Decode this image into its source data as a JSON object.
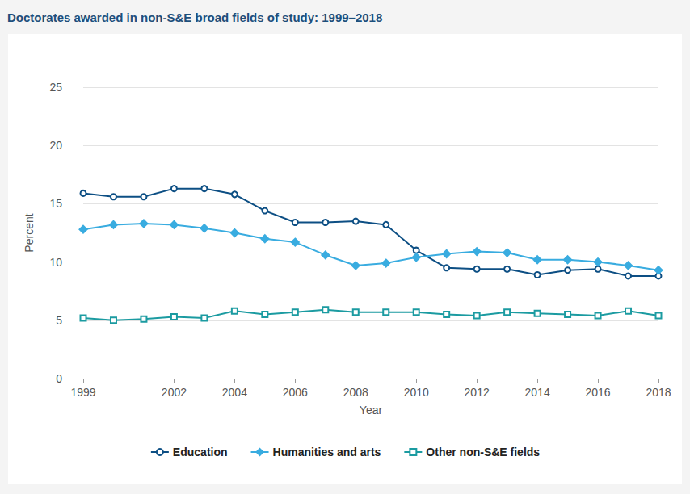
{
  "chart_data": {
    "type": "line",
    "title": "Doctorates awarded in non-S&E broad fields of study: 1999–2018",
    "x_label": "Year",
    "y_label": "Percent",
    "x": [
      1999,
      2000,
      2001,
      2002,
      2003,
      2004,
      2005,
      2006,
      2007,
      2008,
      2009,
      2010,
      2011,
      2012,
      2013,
      2014,
      2015,
      2016,
      2017,
      2018
    ],
    "series": [
      {
        "name": "Education",
        "color": "#0d4f84",
        "marker": "circle",
        "values": [
          15.9,
          15.6,
          15.6,
          16.3,
          16.3,
          15.8,
          14.4,
          13.4,
          13.4,
          13.5,
          13.2,
          11.0,
          9.5,
          9.4,
          9.4,
          8.9,
          9.3,
          9.4,
          8.8,
          8.8
        ]
      },
      {
        "name": "Humanities and arts",
        "color": "#39ace0",
        "marker": "diamond",
        "values": [
          12.8,
          13.2,
          13.3,
          13.2,
          12.9,
          12.5,
          12.0,
          11.7,
          10.6,
          9.7,
          9.9,
          10.4,
          10.7,
          10.9,
          10.8,
          10.2,
          10.2,
          10.0,
          9.7,
          9.3
        ]
      },
      {
        "name": "Other non-S&E fields",
        "color": "#1b9ba1",
        "marker": "square",
        "values": [
          5.2,
          5.0,
          5.1,
          5.3,
          5.2,
          5.8,
          5.5,
          5.7,
          5.9,
          5.7,
          5.7,
          5.7,
          5.5,
          5.4,
          5.7,
          5.6,
          5.5,
          5.4,
          5.8,
          5.4
        ]
      }
    ],
    "xlim": [
      1999,
      2018
    ],
    "xticks": [
      1999,
      2002,
      2004,
      2006,
      2008,
      2010,
      2012,
      2014,
      2016,
      2018
    ],
    "ylim": [
      0,
      25
    ],
    "yticks": [
      0,
      5,
      10,
      15,
      20,
      25
    ],
    "grid": true,
    "legend": "bottom"
  }
}
